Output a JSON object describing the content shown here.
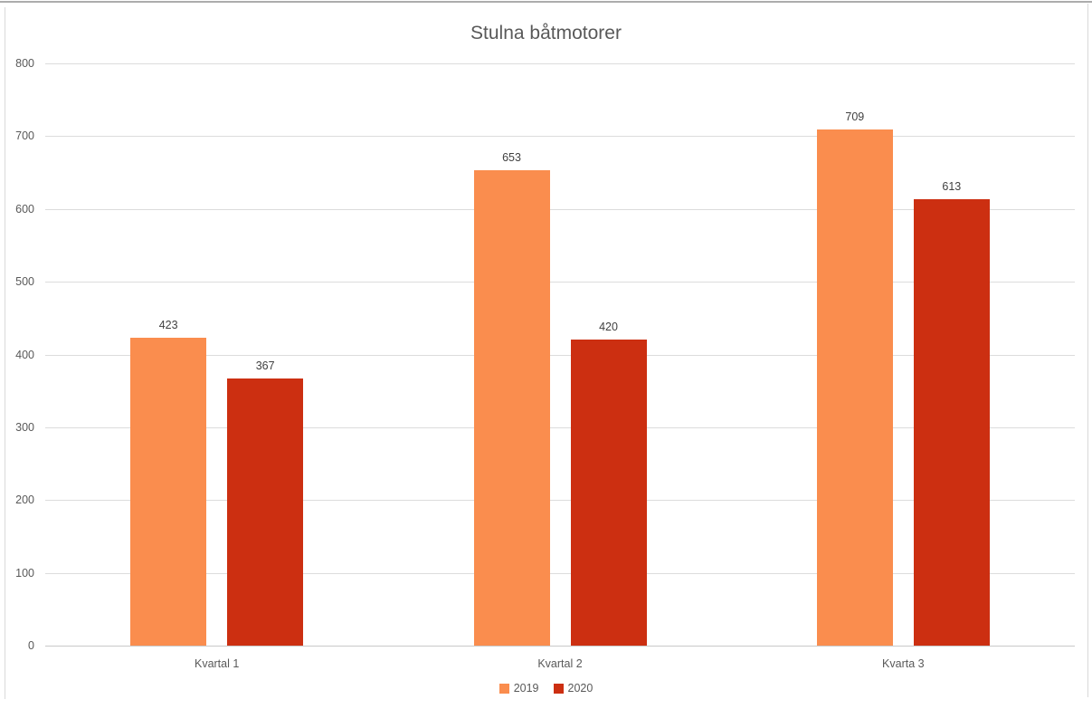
{
  "chart_data": {
    "type": "bar",
    "title": "Stulna båtmotorer",
    "categories": [
      "Kvartal 1",
      "Kvartal 2",
      "Kvarta 3"
    ],
    "series": [
      {
        "name": "2019",
        "color": "#FA8D4E",
        "values": [
          423,
          653,
          709
        ]
      },
      {
        "name": "2020",
        "color": "#CC2F11",
        "values": [
          367,
          420,
          613
        ]
      }
    ],
    "ylim": [
      0,
      800
    ],
    "yticks": [
      0,
      100,
      200,
      300,
      400,
      500,
      600,
      700,
      800
    ],
    "grid": true,
    "data_labels": true,
    "legend_position": "bottom"
  },
  "colors": {
    "background": "#FFFFFF",
    "gridline": "#DCDCDC",
    "axis_line": "#C9C9C9",
    "tick_text": "#595959",
    "title_text": "#595959",
    "value_label_text": "#404040",
    "frame_top": "#ACACAC",
    "frame_side": "#D9D9D9"
  }
}
